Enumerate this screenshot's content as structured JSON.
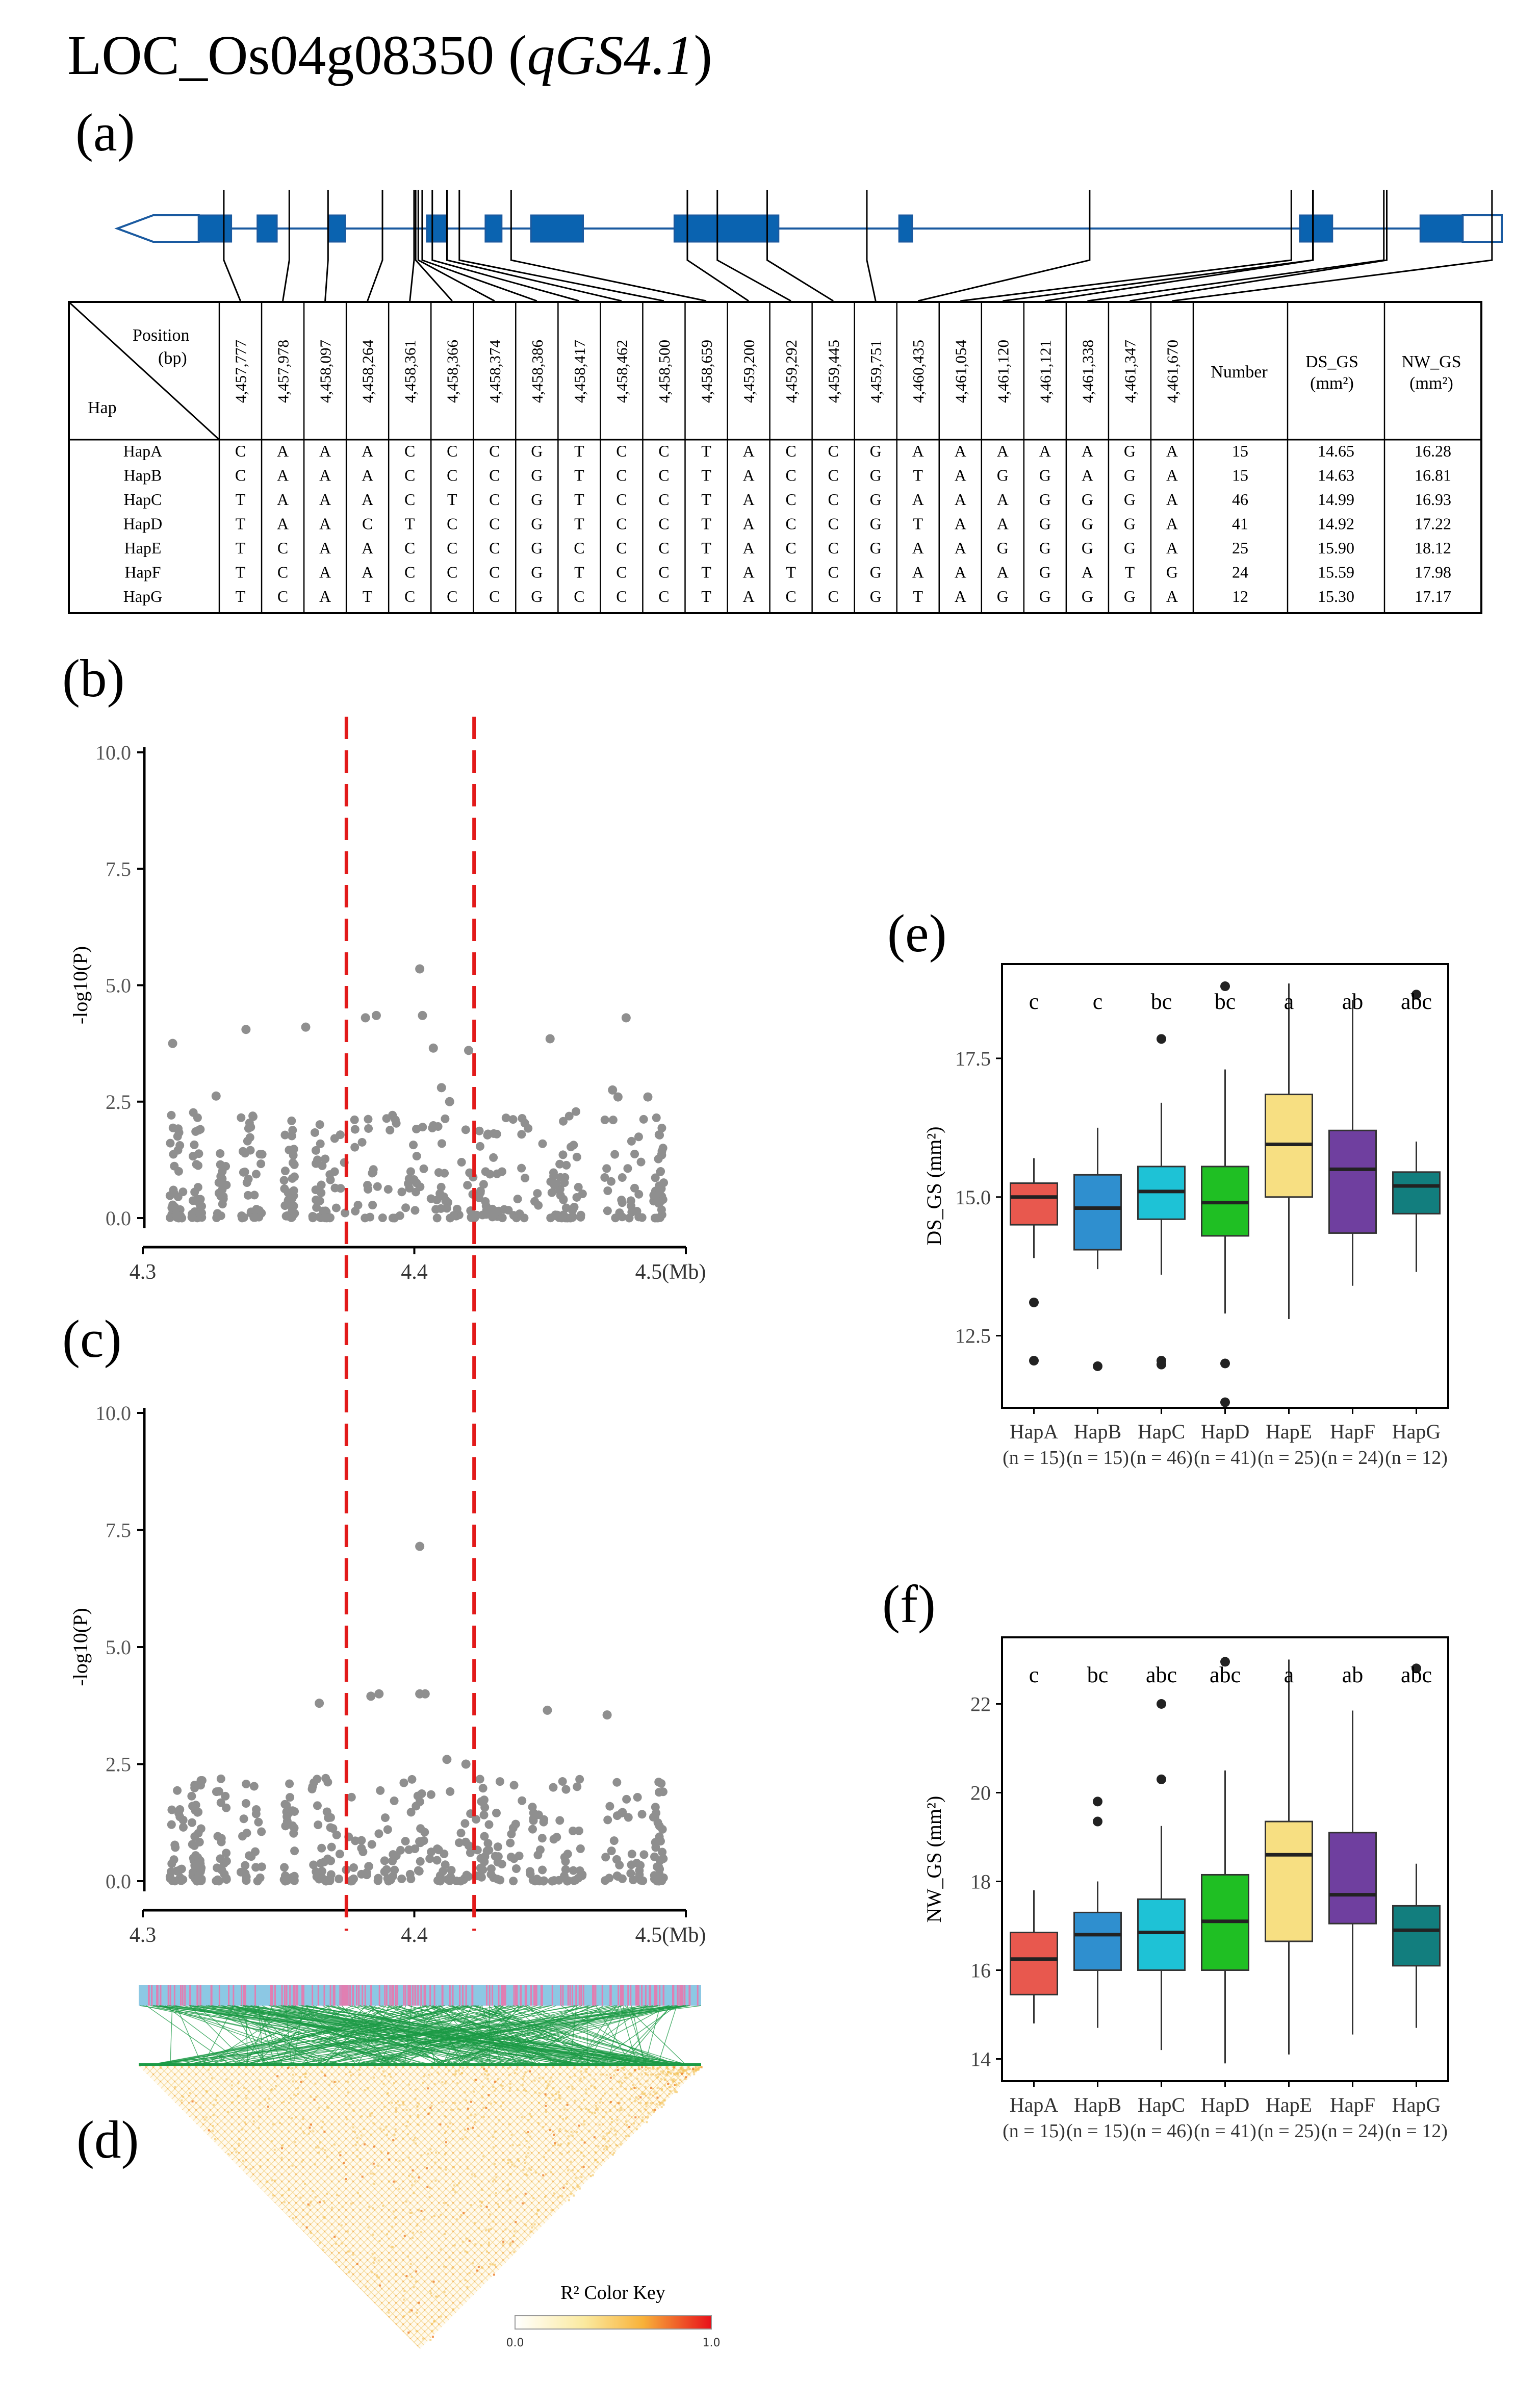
{
  "title": {
    "gene": "LOC_Os04g08350",
    "qtl": "qGS4.1"
  },
  "panel_labels": {
    "a": "(a)",
    "b": "(b)",
    "c": "(c)",
    "d": "(d)",
    "e": "(e)",
    "f": "(f)"
  },
  "haplotype_table": {
    "header": {
      "position": "Position",
      "unit": "(bp)",
      "hap": "Hap",
      "number": "Number",
      "ds_gs": "DS_GS",
      "ds_gs_unit": "(mm²)",
      "nw_gs": "NW_GS",
      "nw_gs_unit": "(mm²)"
    },
    "positions": [
      "4,457,777",
      "4,457,978",
      "4,458,097",
      "4,458,264",
      "4,458,361",
      "4,458,366",
      "4,458,374",
      "4,458,386",
      "4,458,417",
      "4,458,462",
      "4,458,500",
      "4,458,659",
      "4,459,200",
      "4,459,292",
      "4,459,445",
      "4,459,751",
      "4,460,435",
      "4,461,054",
      "4,461,120",
      "4,461,121",
      "4,461,338",
      "4,461,347",
      "4,461,670"
    ],
    "rows": [
      {
        "hap": "HapA",
        "alleles": [
          "C",
          "A",
          "A",
          "A",
          "C",
          "C",
          "C",
          "G",
          "T",
          "C",
          "C",
          "T",
          "A",
          "C",
          "C",
          "G",
          "A",
          "A",
          "A",
          "A",
          "A",
          "G",
          "A"
        ],
        "number": "15",
        "ds": "14.65",
        "nw": "16.28"
      },
      {
        "hap": "HapB",
        "alleles": [
          "C",
          "A",
          "A",
          "A",
          "C",
          "C",
          "C",
          "G",
          "T",
          "C",
          "C",
          "T",
          "A",
          "C",
          "C",
          "G",
          "T",
          "A",
          "G",
          "G",
          "A",
          "G",
          "A"
        ],
        "number": "15",
        "ds": "14.63",
        "nw": "16.81"
      },
      {
        "hap": "HapC",
        "alleles": [
          "T",
          "A",
          "A",
          "A",
          "C",
          "T",
          "C",
          "G",
          "T",
          "C",
          "C",
          "T",
          "A",
          "C",
          "C",
          "G",
          "A",
          "A",
          "A",
          "G",
          "G",
          "G",
          "A"
        ],
        "number": "46",
        "ds": "14.99",
        "nw": "16.93"
      },
      {
        "hap": "HapD",
        "alleles": [
          "T",
          "A",
          "A",
          "C",
          "T",
          "C",
          "C",
          "G",
          "T",
          "C",
          "C",
          "T",
          "A",
          "C",
          "C",
          "G",
          "T",
          "A",
          "A",
          "G",
          "G",
          "G",
          "A"
        ],
        "number": "41",
        "ds": "14.92",
        "nw": "17.22"
      },
      {
        "hap": "HapE",
        "alleles": [
          "T",
          "C",
          "A",
          "A",
          "C",
          "C",
          "C",
          "G",
          "C",
          "C",
          "C",
          "T",
          "A",
          "C",
          "C",
          "G",
          "A",
          "A",
          "G",
          "G",
          "G",
          "G",
          "A"
        ],
        "number": "25",
        "ds": "15.90",
        "nw": "18.12"
      },
      {
        "hap": "HapF",
        "alleles": [
          "T",
          "C",
          "A",
          "A",
          "C",
          "C",
          "C",
          "G",
          "T",
          "C",
          "C",
          "T",
          "A",
          "T",
          "C",
          "G",
          "A",
          "A",
          "A",
          "G",
          "A",
          "T",
          "G"
        ],
        "number": "24",
        "ds": "15.59",
        "nw": "17.98"
      },
      {
        "hap": "HapG",
        "alleles": [
          "T",
          "C",
          "A",
          "T",
          "C",
          "C",
          "C",
          "G",
          "C",
          "C",
          "C",
          "T",
          "A",
          "C",
          "C",
          "G",
          "T",
          "A",
          "G",
          "G",
          "G",
          "G",
          "A"
        ],
        "number": "12",
        "ds": "15.30",
        "nw": "17.17"
      }
    ]
  },
  "gene_model": {
    "exons_bp": [
      [
        4457700,
        4457800
      ],
      [
        4457880,
        4457940
      ],
      [
        4458100,
        4458150
      ],
      [
        4458400,
        4458460
      ],
      [
        4458580,
        4458630
      ],
      [
        4458720,
        4458880
      ],
      [
        4459160,
        4459480
      ],
      [
        4459850,
        4459890
      ],
      [
        4461080,
        4461180
      ],
      [
        4461450,
        4461580
      ]
    ],
    "gene_start": 4457450,
    "gene_end": 4461700
  },
  "chart_data": [
    {
      "id": "b",
      "type": "scatter",
      "ylabel": "-log10(P)",
      "xlim": [
        4.3,
        4.5
      ],
      "ylim": [
        0,
        10
      ],
      "x_ticks": [
        "4.3",
        "4.4",
        "4.5(Mb)"
      ],
      "y_ticks": [
        "0.0",
        "2.5",
        "5.0",
        "7.5",
        "10.0"
      ],
      "region_lines": [
        4.375,
        4.422
      ],
      "highlight_points": [
        [
          4.311,
          3.75
        ],
        [
          4.327,
          2.62
        ],
        [
          4.338,
          4.05
        ],
        [
          4.36,
          4.1
        ],
        [
          4.382,
          4.3
        ],
        [
          4.386,
          4.35
        ],
        [
          4.402,
          5.35
        ],
        [
          4.403,
          4.35
        ],
        [
          4.407,
          3.65
        ],
        [
          4.41,
          2.8
        ],
        [
          4.413,
          2.5
        ],
        [
          4.42,
          3.6
        ],
        [
          4.45,
          3.85
        ],
        [
          4.473,
          2.75
        ],
        [
          4.475,
          2.6
        ],
        [
          4.478,
          4.3
        ],
        [
          4.486,
          2.6
        ]
      ],
      "background": {
        "n": 420,
        "max": 2.3
      }
    },
    {
      "id": "c",
      "type": "scatter",
      "ylabel": "-log10(P)",
      "xlim": [
        4.3,
        4.5
      ],
      "ylim": [
        0,
        10
      ],
      "x_ticks": [
        "4.3",
        "4.4",
        "4.5(Mb)"
      ],
      "y_ticks": [
        "0.0",
        "2.5",
        "5.0",
        "7.5",
        "10.0"
      ],
      "region_lines": [
        4.375,
        4.422
      ],
      "highlight_points": [
        [
          4.365,
          3.8
        ],
        [
          4.384,
          3.95
        ],
        [
          4.387,
          4.0
        ],
        [
          4.402,
          7.15
        ],
        [
          4.402,
          4.0
        ],
        [
          4.404,
          4.0
        ],
        [
          4.412,
          2.6
        ],
        [
          4.419,
          2.5
        ],
        [
          4.449,
          3.65
        ],
        [
          4.471,
          3.55
        ]
      ],
      "background": {
        "n": 420,
        "max": 2.2
      }
    },
    {
      "id": "e",
      "type": "box",
      "ylabel": "DS_GS (mm²)",
      "ylim": [
        11.2,
        19.2
      ],
      "y_ticks": [
        12.5,
        15.0,
        17.5
      ],
      "categories": [
        "HapA",
        "HapB",
        "HapC",
        "HapD",
        "HapE",
        "HapF",
        "HapG"
      ],
      "counts": [
        "(n = 15)",
        "(n = 15)",
        "(n = 46)",
        "(n = 41)",
        "(n = 25)",
        "(n = 24)",
        "(n = 12)"
      ],
      "colors": [
        "#e8584e",
        "#2f8fcf",
        "#1ec2d6",
        "#1fbf23",
        "#f7df82",
        "#6f3f9f",
        "#127e7e"
      ],
      "letters": [
        "c",
        "c",
        "bc",
        "bc",
        "a",
        "ab",
        "abc"
      ],
      "boxes": [
        {
          "min": 13.9,
          "q1": 14.5,
          "median": 15.0,
          "q3": 15.25,
          "max": 15.7,
          "outliers": [
            13.1,
            12.05
          ]
        },
        {
          "min": 13.7,
          "q1": 14.05,
          "median": 14.8,
          "q3": 15.4,
          "max": 16.25,
          "outliers": [
            11.95
          ]
        },
        {
          "min": 13.6,
          "q1": 14.6,
          "median": 15.1,
          "q3": 15.55,
          "max": 16.7,
          "outliers": [
            17.85,
            12.05,
            11.98
          ]
        },
        {
          "min": 12.9,
          "q1": 14.3,
          "median": 14.9,
          "q3": 15.55,
          "max": 17.3,
          "outliers": [
            18.8,
            12.0,
            11.3
          ]
        },
        {
          "min": 12.8,
          "q1": 15.0,
          "median": 15.95,
          "q3": 16.85,
          "max": 18.85,
          "outliers": []
        },
        {
          "min": 13.4,
          "q1": 14.35,
          "median": 15.5,
          "q3": 16.2,
          "max": 18.55,
          "outliers": []
        },
        {
          "min": 13.65,
          "q1": 14.7,
          "median": 15.2,
          "q3": 15.45,
          "max": 16.0,
          "outliers": [
            18.65
          ]
        }
      ]
    },
    {
      "id": "f",
      "type": "box",
      "ylabel": "NW_GS (mm²)",
      "ylim": [
        13.5,
        23.5
      ],
      "y_ticks": [
        14,
        16,
        18,
        20,
        22
      ],
      "categories": [
        "HapA",
        "HapB",
        "HapC",
        "HapD",
        "HapE",
        "HapF",
        "HapG"
      ],
      "counts": [
        "(n = 15)",
        "(n = 15)",
        "(n = 46)",
        "(n = 41)",
        "(n = 25)",
        "(n = 24)",
        "(n = 12)"
      ],
      "colors": [
        "#e8584e",
        "#2f8fcf",
        "#1ec2d6",
        "#1fbf23",
        "#f7df82",
        "#6f3f9f",
        "#127e7e"
      ],
      "letters": [
        "c",
        "bc",
        "abc",
        "abc",
        "a",
        "ab",
        "abc"
      ],
      "boxes": [
        {
          "min": 14.8,
          "q1": 15.45,
          "median": 16.25,
          "q3": 16.85,
          "max": 17.8,
          "outliers": []
        },
        {
          "min": 14.7,
          "q1": 16.0,
          "median": 16.8,
          "q3": 17.3,
          "max": 18.0,
          "outliers": [
            19.8,
            19.35
          ]
        },
        {
          "min": 14.2,
          "q1": 16.0,
          "median": 16.85,
          "q3": 17.6,
          "max": 19.25,
          "outliers": [
            22.0,
            20.3
          ]
        },
        {
          "min": 13.9,
          "q1": 16.0,
          "median": 17.1,
          "q3": 18.15,
          "max": 20.5,
          "outliers": [
            22.95
          ]
        },
        {
          "min": 14.1,
          "q1": 16.65,
          "median": 18.6,
          "q3": 19.35,
          "max": 23.0,
          "outliers": []
        },
        {
          "min": 14.55,
          "q1": 17.05,
          "median": 17.7,
          "q3": 19.1,
          "max": 21.85,
          "outliers": []
        },
        {
          "min": 14.7,
          "q1": 16.1,
          "median": 16.9,
          "q3": 17.45,
          "max": 18.4,
          "outliers": [
            22.8
          ]
        }
      ]
    }
  ],
  "ld_heatmap": {
    "key_title": "R² Color Key",
    "key_min": "0.0",
    "key_max": "1.0"
  }
}
